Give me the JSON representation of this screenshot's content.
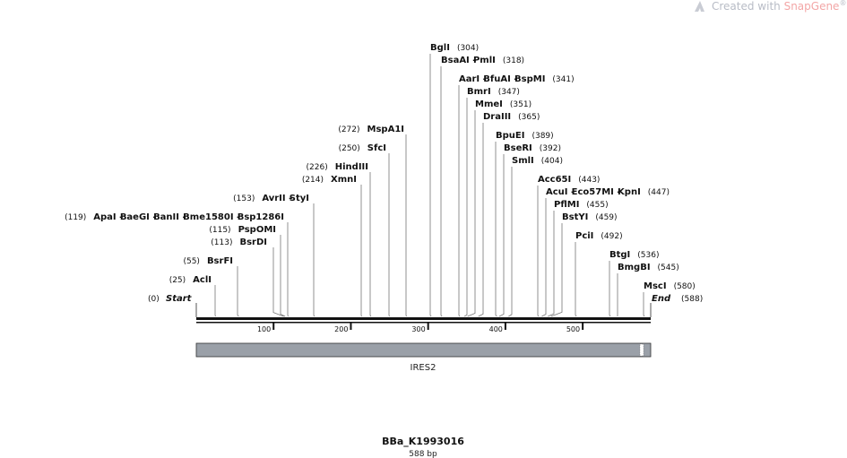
{
  "watermark": {
    "prefix": "Created with ",
    "brand": "SnapGene",
    "reg": "®",
    "icon": "snapgene-logo-icon",
    "color": "#b8bcc6",
    "brand_color": "#f3a6a6"
  },
  "sequence": {
    "name": "BBa_K1993016",
    "length_label": "588 bp",
    "length": 588
  },
  "ends": {
    "start_label": "Start",
    "start_pos": "(0)",
    "end_label": "End",
    "end_pos": "(588)"
  },
  "ruler": {
    "ticks": [
      "100",
      "200",
      "300",
      "400",
      "500"
    ]
  },
  "feature": {
    "name": "IRES2",
    "color": "#9aa0a8"
  },
  "sites": [
    {
      "label": "(304)",
      "names": [
        "BglI"
      ]
    },
    {
      "label": "(318)",
      "names": [
        "BsaAI",
        "PmlI"
      ]
    },
    {
      "label": "(341)",
      "names": [
        "AarI",
        "BfuAI",
        "BspMI"
      ]
    },
    {
      "label": "(347)",
      "names": [
        "BmrI"
      ]
    },
    {
      "label": "(351)",
      "names": [
        "MmeI"
      ]
    },
    {
      "label": "(365)",
      "names": [
        "DraIII"
      ]
    },
    {
      "label": "(272)",
      "names": [
        "MspA1I"
      ]
    },
    {
      "label": "(250)",
      "names": [
        "SfcI"
      ]
    },
    {
      "label": "(389)",
      "names": [
        "BpuEI"
      ]
    },
    {
      "label": "(392)",
      "names": [
        "BseRI"
      ]
    },
    {
      "label": "(404)",
      "names": [
        "SmlI"
      ]
    },
    {
      "label": "(226)",
      "names": [
        "HindIII"
      ]
    },
    {
      "label": "(214)",
      "names": [
        "XmnI"
      ]
    },
    {
      "label": "(443)",
      "names": [
        "Acc65I"
      ]
    },
    {
      "label": "(447)",
      "names": [
        "AcuI",
        "Eco57MI",
        "KpnI"
      ]
    },
    {
      "label": "(153)",
      "names": [
        "AvrII",
        "StyI"
      ]
    },
    {
      "label": "(455)",
      "names": [
        "PflMI"
      ]
    },
    {
      "label": "(119)",
      "names": [
        "ApaI",
        "BaeGI",
        "BanII",
        "Bme1580I",
        "Bsp1286I"
      ]
    },
    {
      "label": "(459)",
      "names": [
        "BstYI"
      ]
    },
    {
      "label": "(115)",
      "names": [
        "PspOMI"
      ]
    },
    {
      "label": "(113)",
      "names": [
        "BsrDI"
      ]
    },
    {
      "label": "(492)",
      "names": [
        "PciI"
      ]
    },
    {
      "label": "(536)",
      "names": [
        "BtgI"
      ]
    },
    {
      "label": "(55)",
      "names": [
        "BsrFI"
      ]
    },
    {
      "label": "(545)",
      "names": [
        "BmgBI"
      ]
    },
    {
      "label": "(25)",
      "names": [
        "AclI"
      ]
    },
    {
      "label": "(580)",
      "names": [
        "MscI"
      ]
    }
  ]
}
